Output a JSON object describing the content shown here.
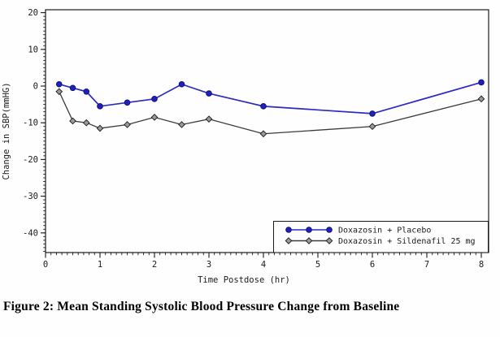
{
  "caption": {
    "text": "Figure 2: Mean Standing Systolic Blood Pressure Change from Baseline"
  },
  "chart_data": {
    "type": "line",
    "title": "",
    "xlabel": "Time Postdose (hr)",
    "ylabel": "Change in SBP(mmHG)",
    "xlim": [
      0,
      8
    ],
    "ylim": [
      -40,
      20
    ],
    "xticks": [
      0,
      1,
      2,
      3,
      4,
      5,
      6,
      7,
      8
    ],
    "yticks": [
      20,
      10,
      0,
      -10,
      -20,
      -30,
      -40
    ],
    "x_minor_step": 0.1,
    "y_minor_step": 1,
    "grid": false,
    "frame": true,
    "legend_position": "bottom-right",
    "x": [
      0.25,
      0.5,
      0.75,
      1,
      1.5,
      2,
      2.5,
      3,
      4,
      6,
      8
    ],
    "series": [
      {
        "name": "Doxazosin + Placebo",
        "marker": "circle",
        "line_color": "#2a2ac4",
        "marker_fill": "#2020bb",
        "marker_stroke": "#10107e",
        "values": [
          0.5,
          -0.5,
          -1.5,
          -5.5,
          -4.5,
          -3.5,
          0.5,
          -2,
          -5.5,
          -7.5,
          1
        ]
      },
      {
        "name": "Doxazosin + Sildenafil 25 mg",
        "marker": "diamond",
        "line_color": "#3a3a3a",
        "marker_fill": "#999999",
        "marker_stroke": "#1a1a1a",
        "values": [
          -1.5,
          -9.5,
          -10,
          -11.5,
          -10.5,
          -8.5,
          -10.5,
          -9,
          -13,
          -11,
          -3.5
        ]
      }
    ],
    "axis_color": "#1a1a1a"
  }
}
